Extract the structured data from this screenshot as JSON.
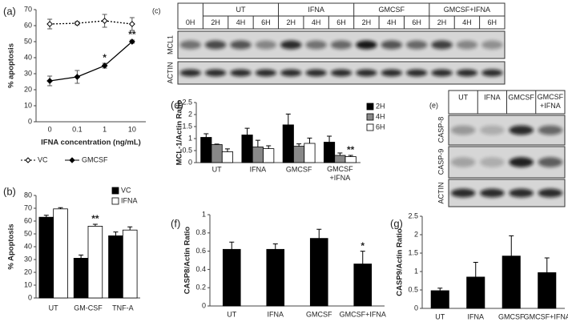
{
  "chart_data": [
    {
      "type": "line",
      "panel": "(a)",
      "xlabel": "IFNA concentration (ng/mL)",
      "ylabel": "% apoptosis",
      "categories": [
        "0",
        "0.1",
        "1",
        "10"
      ],
      "ylim": [
        0,
        70
      ],
      "yticks": [
        0,
        10,
        20,
        30,
        40,
        50,
        60,
        70
      ],
      "legend": "bottom",
      "series": [
        {
          "name": "VC",
          "color": "#000000",
          "line_style": "dotted",
          "marker": "open",
          "values": [
            61,
            61.5,
            63,
            61
          ],
          "errors": [
            3,
            1,
            4,
            4
          ]
        },
        {
          "name": "GMCSF",
          "color": "#000000",
          "line_style": "solid",
          "marker": "filled",
          "values": [
            25.5,
            28,
            35,
            50
          ],
          "errors": [
            3,
            4,
            1.5,
            1
          ],
          "annotations": [
            null,
            null,
            "*",
            "**"
          ]
        }
      ]
    },
    {
      "type": "bar",
      "panel": "(b)",
      "ylabel": "% Apoptosis",
      "categories": [
        "UT",
        "GM-CSF",
        "TNF-A"
      ],
      "ylim": [
        0,
        80
      ],
      "yticks": [
        0,
        10,
        20,
        30,
        40,
        50,
        60,
        70,
        80
      ],
      "legend": "top-right",
      "series": [
        {
          "name": "VC",
          "color": "#000000",
          "values": [
            63,
            31,
            48.5
          ],
          "errors": [
            1.5,
            2.5,
            3
          ]
        },
        {
          "name": "IFNA",
          "color": "#ffffff",
          "values": [
            69.5,
            56,
            53
          ],
          "errors": [
            1,
            1.5,
            2.5
          ],
          "annotations": [
            null,
            "**",
            null
          ]
        }
      ]
    },
    {
      "type": "bar",
      "panel": "(d)",
      "ylabel": "MCL-1/Actin Ratio",
      "categories": [
        "UT",
        "IFNA",
        "GMCSF",
        "GMCSF +IFNA"
      ],
      "ylim": [
        0,
        2.5
      ],
      "yticks": [
        0,
        0.5,
        1,
        1.5,
        2,
        2.5
      ],
      "legend": "right",
      "series": [
        {
          "name": "2H",
          "color": "#000000",
          "values": [
            1.05,
            1.15,
            1.57,
            0.85
          ],
          "errors": [
            0.15,
            0.28,
            0.45,
            0.25
          ]
        },
        {
          "name": "4H",
          "color": "#888888",
          "values": [
            0.75,
            0.65,
            0.68,
            0.3
          ],
          "errors": [
            0.02,
            0.28,
            0.1,
            0.1
          ]
        },
        {
          "name": "6H",
          "color": "#ffffff",
          "values": [
            0.45,
            0.58,
            0.8,
            0.25
          ],
          "errors": [
            0.12,
            0.12,
            0.22,
            0.05
          ],
          "annotations": [
            null,
            null,
            null,
            "**"
          ]
        }
      ]
    },
    {
      "type": "bar",
      "panel": "(f)",
      "ylabel": "CASP8/Actin Ratio",
      "categories": [
        "UT",
        "IFNA",
        "GMCSF",
        "GMCSF+IFNA"
      ],
      "ylim": [
        0,
        1
      ],
      "yticks": [
        0,
        0.2,
        0.4,
        0.6,
        0.8,
        1
      ],
      "series": [
        {
          "color": "#000000",
          "values": [
            0.62,
            0.62,
            0.74,
            0.46
          ],
          "errors": [
            0.08,
            0.06,
            0.1,
            0.14
          ],
          "annotations": [
            null,
            null,
            null,
            "*"
          ]
        }
      ]
    },
    {
      "type": "bar",
      "panel": "(g)",
      "ylabel": "CASP9/Actin Ratio",
      "categories": [
        "UT",
        "IFNA",
        "GMCSF",
        "GMCSF+IFNA"
      ],
      "ylim": [
        0,
        2.5
      ],
      "yticks": [
        0,
        0.5,
        1,
        1.5,
        2,
        2.5
      ],
      "series": [
        {
          "color": "#000000",
          "values": [
            0.48,
            0.85,
            1.42,
            0.97
          ],
          "errors": [
            0.07,
            0.4,
            0.55,
            0.4
          ]
        }
      ]
    }
  ],
  "blots": [
    {
      "panel": "(c)",
      "groups": [
        "UT",
        "IFNA",
        "GMCSF",
        "GMCSF+IFNA"
      ],
      "lanes": [
        "0H",
        "2H",
        "4H",
        "6H",
        "2H",
        "4H",
        "6H",
        "2H",
        "4H",
        "6H",
        "2H",
        "4H",
        "6H"
      ],
      "rows": [
        "MCL1",
        "ACTIN"
      ]
    },
    {
      "panel": "(e)",
      "lanes": [
        "UT",
        "IFNA",
        "GMCSF",
        "GMCSF +IFNA"
      ],
      "rows": [
        "CASP-8",
        "CASP-9",
        "ACTIN"
      ]
    }
  ]
}
